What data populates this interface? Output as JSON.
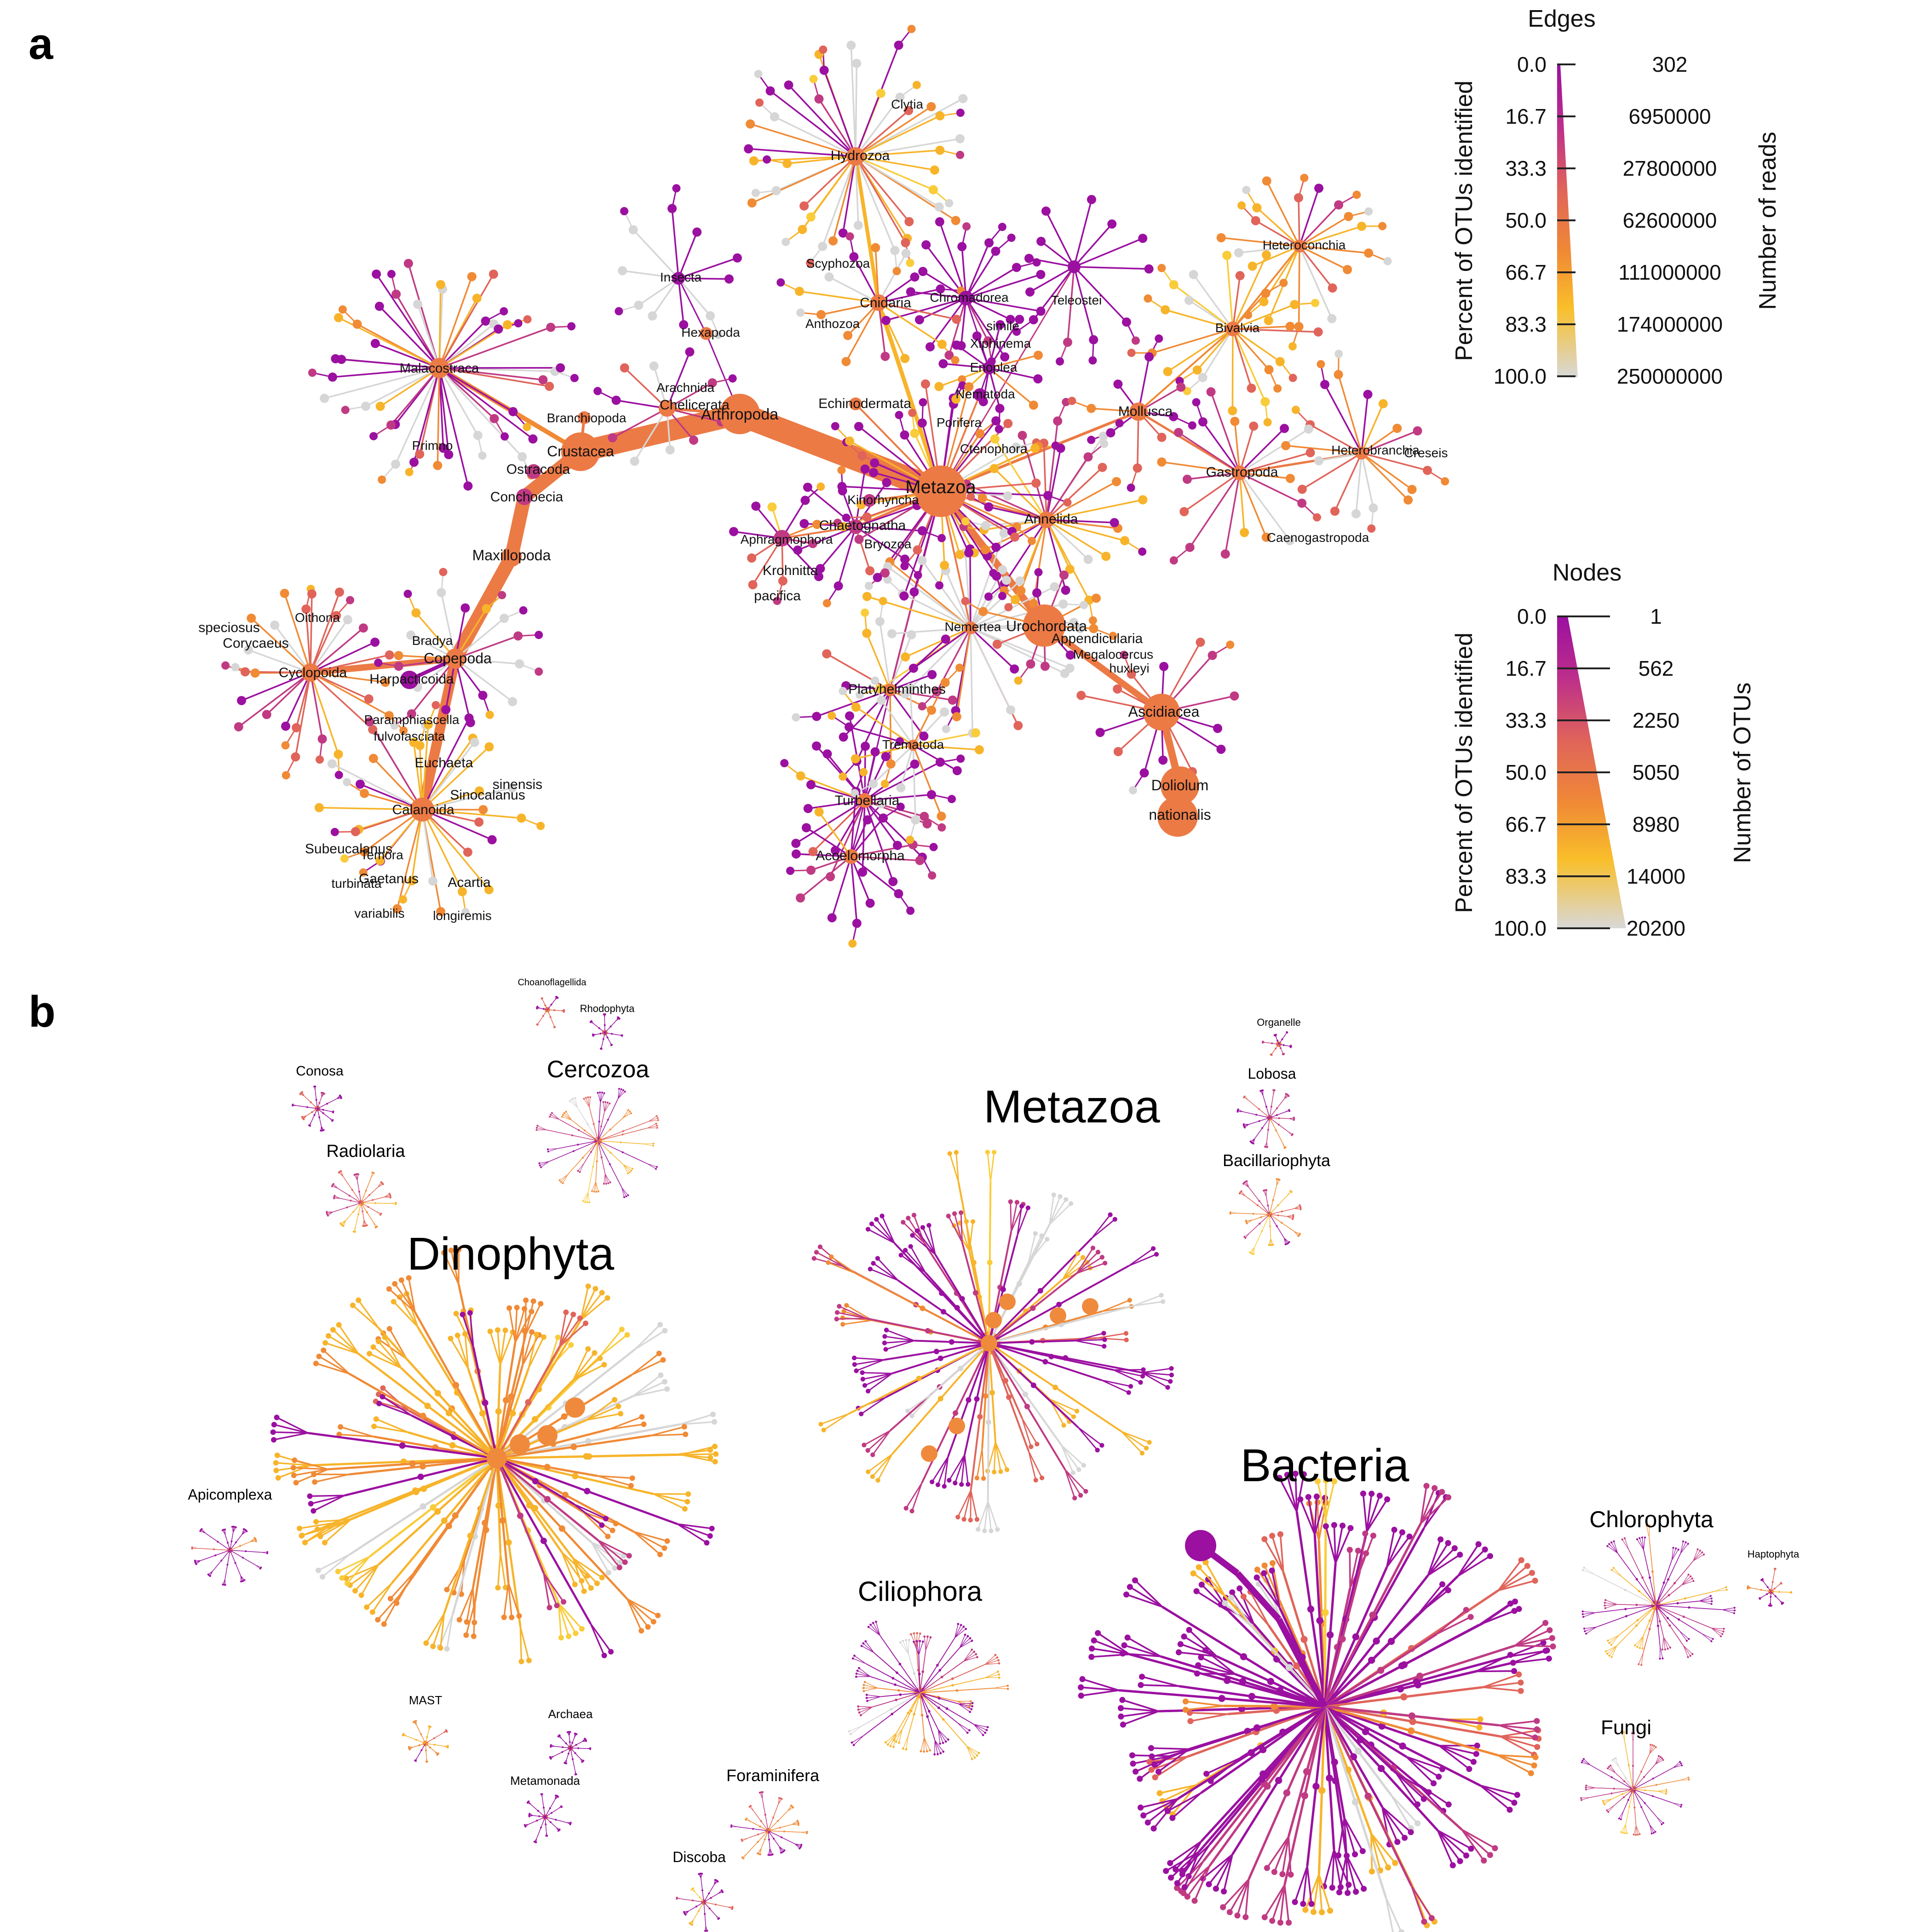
{
  "panels": {
    "a": "a",
    "b": "b"
  },
  "colors": {
    "gradient": [
      "#9b10a0",
      "#c03a83",
      "#e0645a",
      "#f08a35",
      "#f7b42a",
      "#f9cc3a",
      "#d6d6d6"
    ],
    "node_main": "#ef8a3d"
  },
  "legend_edges": {
    "title": "Edges",
    "left_label": "Percent of OTUs identified",
    "right_label": "Number of reads",
    "left_ticks": [
      "0.0",
      "16.7",
      "33.3",
      "50.0",
      "66.7",
      "83.3",
      "100.0"
    ],
    "right_ticks": [
      "302",
      "6950000",
      "27800000",
      "62600000",
      "111000000",
      "174000000",
      "250000000"
    ]
  },
  "legend_nodes": {
    "title": "Nodes",
    "left_label": "Percent of OTUs identified",
    "right_label": "Number of OTUs",
    "left_ticks": [
      "0.0",
      "16.7",
      "33.3",
      "50.0",
      "66.7",
      "83.3",
      "100.0"
    ],
    "right_ticks": [
      "1",
      "562",
      "2250",
      "5050",
      "8980",
      "14000",
      "20200"
    ]
  },
  "panel_a_labels": [
    "Metazoa",
    "Arthropoda",
    "Crustacea",
    "Malacostraca",
    "Primno",
    "Branchiopoda",
    "Ostracoda",
    "Conchoecia",
    "Maxillopoda",
    "Copepoda",
    "Bradya",
    "Harpacticoida",
    "Cyclopoida",
    "Oithona",
    "speciosus",
    "Corycaeus",
    "Paramphiascella",
    "fulvofasciata",
    "Calanoida",
    "Euchaeta",
    "sinensis",
    "Sinocalanus",
    "Subeucalanus",
    "Temora",
    "turbinata",
    "Gaetanus",
    "variabilis",
    "Acartia",
    "longiremis",
    "Insecta",
    "Hexapoda",
    "Arachnida",
    "Chelicerata",
    "Hydrozoa",
    "Clytia",
    "Scyphozoa",
    "Cnidaria",
    "Anthozoa",
    "Echinodermata",
    "Chromadorea",
    "simile",
    "Xiphinema",
    "Enoplea",
    "Nematoda",
    "Teleostei",
    "Porifera",
    "Ctenophora",
    "Kinorhyncha",
    "Chaetognatha",
    "Aphragmophora",
    "Bryozoa",
    "Krohnitta",
    "pacifica",
    "Annelida",
    "Mollusca",
    "Heteroconchia",
    "Bivalvia",
    "Gastropoda",
    "Heterobranchia",
    "Creseis",
    "Caenogastropoda",
    "Nemertea",
    "Urochordata",
    "Appendicularia",
    "Megalocercus",
    "huxleyi",
    "Ascidiacea",
    "Doliolum",
    "nationalis",
    "Platyhelminthes",
    "Trematoda",
    "Turbellaria",
    "Acoelomorpha"
  ],
  "panel_b_clusters": [
    {
      "name": "Metazoa",
      "size": "xl"
    },
    {
      "name": "Dinophyta",
      "size": "xl"
    },
    {
      "name": "Bacteria",
      "size": "xl"
    },
    {
      "name": "Cercozoa",
      "size": "m"
    },
    {
      "name": "Ciliophora",
      "size": "m"
    },
    {
      "name": "Chlorophyta",
      "size": "m"
    },
    {
      "name": "Fungi",
      "size": "m"
    },
    {
      "name": "Radiolaria",
      "size": "s"
    },
    {
      "name": "Conosa",
      "size": "xs"
    },
    {
      "name": "Choanoflagellida",
      "size": "xxs"
    },
    {
      "name": "Rhodophyta",
      "size": "xxs"
    },
    {
      "name": "Organelle",
      "size": "xxs"
    },
    {
      "name": "Lobosa",
      "size": "s"
    },
    {
      "name": "Bacillariophyta",
      "size": "s"
    },
    {
      "name": "Apicomplexa",
      "size": "xs"
    },
    {
      "name": "Haptophyta",
      "size": "xxs"
    },
    {
      "name": "MAST",
      "size": "xs"
    },
    {
      "name": "Archaea",
      "size": "xs"
    },
    {
      "name": "Metamonada",
      "size": "xs"
    },
    {
      "name": "Foraminifera",
      "size": "s"
    },
    {
      "name": "Discoba",
      "size": "s"
    }
  ]
}
